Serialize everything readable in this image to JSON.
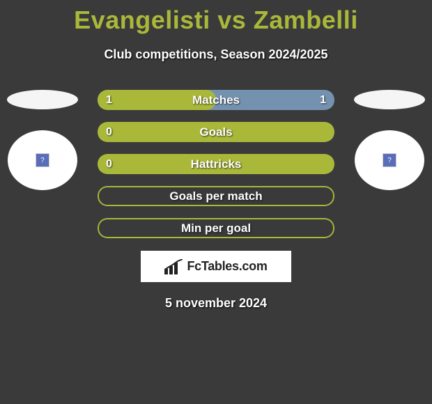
{
  "title": "Evangelisti vs Zambelli",
  "title_color": "#aab83a",
  "subtitle": "Club competitions, Season 2024/2025",
  "date": "5 november 2024",
  "branding": {
    "text": "FcTables.com"
  },
  "colors": {
    "background": "#3a3a3a",
    "row_border": "#aab83a",
    "row_fill": "#aab83a",
    "row_accent": "#7492b0",
    "text": "#ffffff"
  },
  "left_player": {
    "flag_color": "#f5f5f5"
  },
  "right_player": {
    "flag_color": "#f5f5f5"
  },
  "rows": [
    {
      "label": "Matches",
      "left": "1",
      "right": "1",
      "fill_pct": 50,
      "bg_color": "#7492b0",
      "fill_color": "#aab83a",
      "border": false
    },
    {
      "label": "Goals",
      "left": "0",
      "right": "",
      "fill_pct": 100,
      "bg_color": "#aab83a",
      "fill_color": "#aab83a",
      "border": false
    },
    {
      "label": "Hattricks",
      "left": "0",
      "right": "",
      "fill_pct": 100,
      "bg_color": "#aab83a",
      "fill_color": "#aab83a",
      "border": false
    },
    {
      "label": "Goals per match",
      "left": "",
      "right": "",
      "fill_pct": 0,
      "bg_color": "transparent",
      "fill_color": "transparent",
      "border": true
    },
    {
      "label": "Min per goal",
      "left": "",
      "right": "",
      "fill_pct": 0,
      "bg_color": "transparent",
      "fill_color": "transparent",
      "border": true
    }
  ]
}
